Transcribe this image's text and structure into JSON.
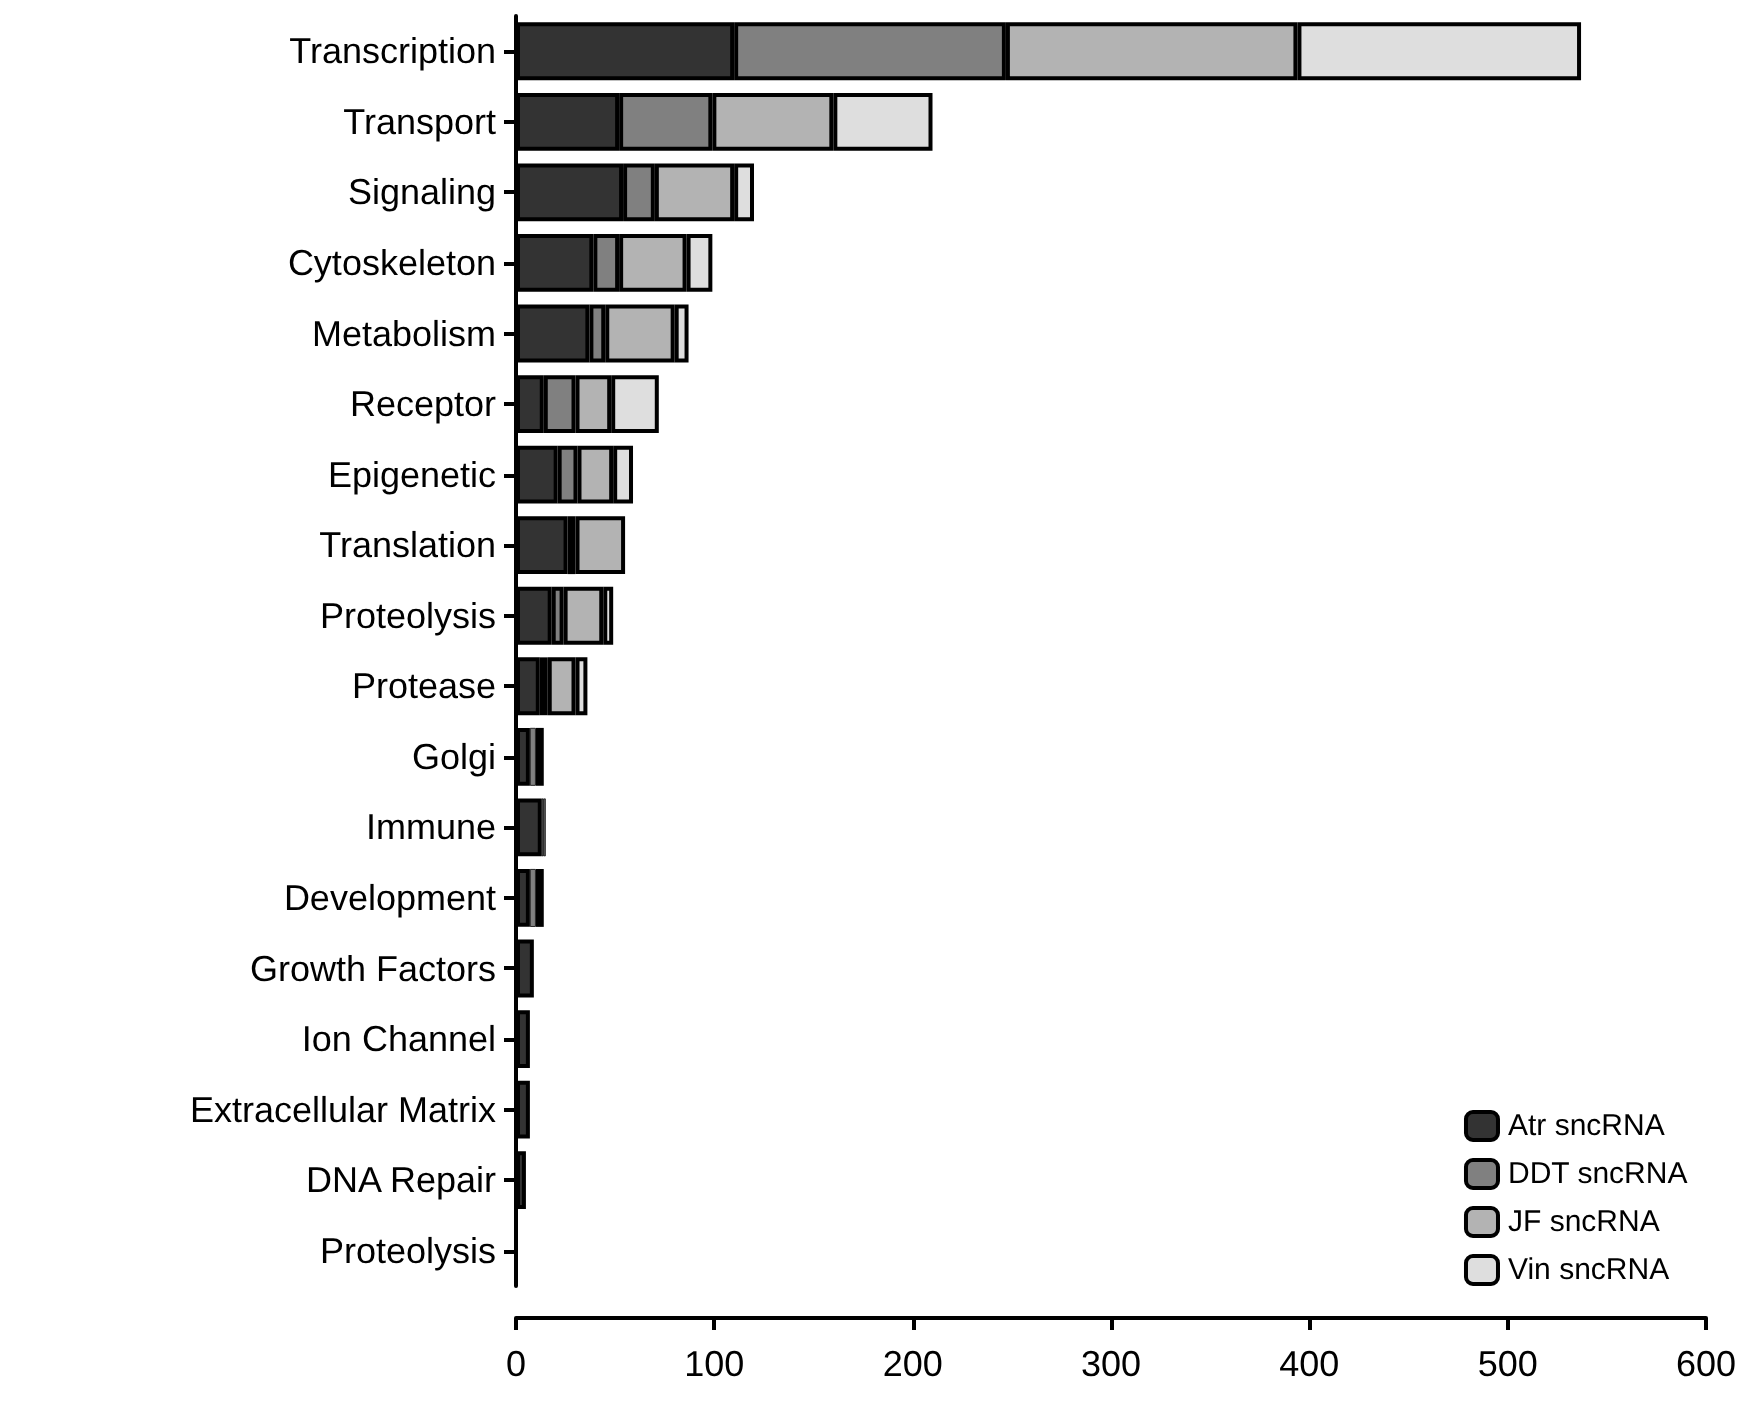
{
  "chart_data": {
    "type": "bar",
    "orientation": "horizontal",
    "stacked": true,
    "categories": [
      "Transcription",
      "Transport",
      "Signaling",
      "Cytoskeleton",
      "Metabolism",
      "Receptor",
      "Epigenetic",
      "Translation",
      "Proteolysis",
      "Protease",
      "Golgi",
      "Immune",
      "Development",
      "Growth Factors",
      "Ion Channel",
      "Extracellular Matrix",
      "DNA Repair",
      "Proteolysis"
    ],
    "series": [
      {
        "name": "Atr sncRNA",
        "color": "#333333",
        "values": [
          110,
          52,
          54,
          39,
          37,
          14,
          21,
          26,
          18,
          12,
          7,
          13,
          7,
          9,
          7,
          7,
          5,
          null
        ]
      },
      {
        "name": "DDT sncRNA",
        "color": "#808080",
        "values": [
          137,
          47,
          16,
          13,
          8,
          16,
          10,
          4,
          6,
          4,
          3,
          1,
          3,
          0,
          0,
          0,
          0,
          0
        ]
      },
      {
        "name": "JF sncRNA",
        "color": "#b3b3b3",
        "values": [
          147,
          61,
          40,
          34,
          35,
          18,
          18,
          25,
          20,
          14,
          4,
          1,
          4,
          0,
          0,
          0,
          0,
          0
        ]
      },
      {
        "name": "Vin sncRNA",
        "color": "#dedede",
        "values": [
          143,
          50,
          10,
          13,
          7,
          24,
          10,
          0,
          5,
          6,
          null,
          0,
          null,
          0,
          0,
          0,
          0,
          0
        ]
      }
    ],
    "xlim": [
      0,
      600
    ],
    "xticks": [
      0,
      100,
      200,
      300,
      400,
      500,
      600
    ],
    "grid": false,
    "legend": "bottom right"
  }
}
